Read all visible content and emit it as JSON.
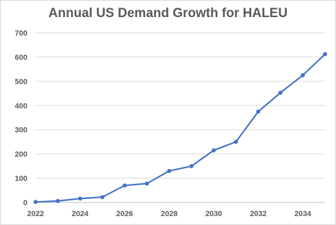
{
  "chart_data": {
    "type": "line",
    "title": "Annual US Demand Growth for HALEU",
    "xlabel": "",
    "ylabel": "",
    "x": [
      2022,
      2023,
      2024,
      2025,
      2026,
      2027,
      2028,
      2029,
      2030,
      2031,
      2032,
      2033,
      2034,
      2035
    ],
    "series": [
      {
        "values": [
          2,
          6,
          16,
          22,
          70,
          78,
          130,
          150,
          215,
          250,
          375,
          453,
          525,
          612
        ]
      }
    ],
    "xlim": [
      2022,
      2035
    ],
    "ylim": [
      0,
      700
    ],
    "x_ticks": [
      "2022",
      "2024",
      "2026",
      "2028",
      "2030",
      "2032",
      "2034"
    ],
    "y_ticks": [
      "0",
      "100",
      "200",
      "300",
      "400",
      "500",
      "600",
      "700"
    ],
    "grid": "horizontal",
    "legend": "none",
    "colors": {
      "line": "#4472c4",
      "grid": "#d9d9d9",
      "text": "#595959"
    }
  }
}
